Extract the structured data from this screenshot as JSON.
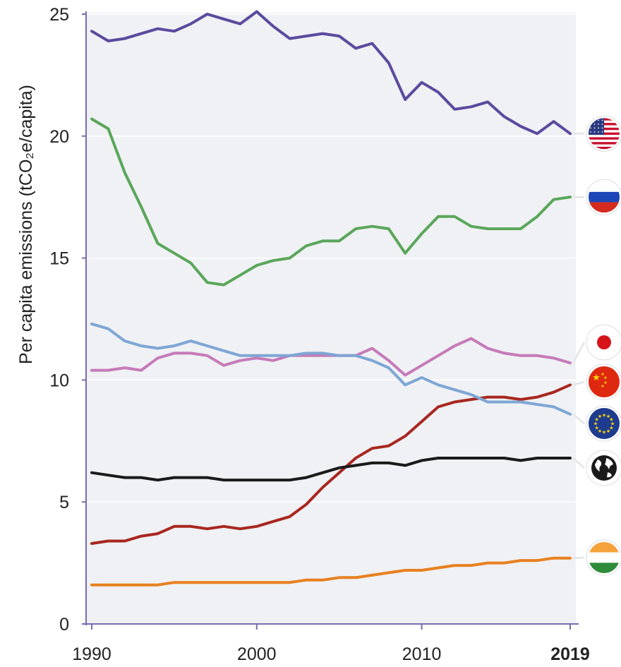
{
  "chart_data": {
    "type": "line",
    "xlabel": "",
    "ylabel": "Per capita emissions (tCO₂e/capita)",
    "xlim": [
      1990,
      2019
    ],
    "ylim": [
      0,
      25
    ],
    "x_ticks": [
      "1990",
      "2000",
      "2010",
      "2019"
    ],
    "x_ticks_bold": [
      false,
      false,
      false,
      true
    ],
    "y_ticks": [
      "0",
      "5",
      "10",
      "15",
      "20",
      "25"
    ],
    "grid": true,
    "legend": "flag icons at right end of each line",
    "x": [
      1990,
      1991,
      1992,
      1993,
      1994,
      1995,
      1996,
      1997,
      1998,
      1999,
      2000,
      2001,
      2002,
      2003,
      2004,
      2005,
      2006,
      2007,
      2008,
      2009,
      2010,
      2011,
      2012,
      2013,
      2014,
      2015,
      2016,
      2017,
      2018,
      2019
    ],
    "series": [
      {
        "flag": "usa-flag-icon",
        "color": "#5b4a9e",
        "values": [
          24.3,
          23.9,
          24.0,
          24.2,
          24.4,
          24.3,
          24.6,
          25.0,
          24.8,
          24.6,
          25.1,
          24.5,
          24.0,
          24.1,
          24.2,
          24.1,
          23.6,
          23.8,
          23.0,
          21.5,
          22.2,
          21.8,
          21.1,
          21.2,
          21.4,
          20.8,
          20.4,
          20.1,
          20.6,
          20.1
        ]
      },
      {
        "flag": "russia-flag-icon",
        "color": "#5aa65a",
        "values": [
          20.7,
          20.3,
          18.5,
          17.1,
          15.6,
          15.2,
          14.8,
          14.0,
          13.9,
          14.3,
          14.7,
          14.9,
          15.0,
          15.5,
          15.7,
          15.7,
          16.2,
          16.3,
          16.2,
          15.2,
          16.0,
          16.7,
          16.7,
          16.3,
          16.2,
          16.2,
          16.2,
          16.7,
          17.4,
          17.5
        ]
      },
      {
        "flag": "japan-flag-icon",
        "color": "#c67ab8",
        "values": [
          10.4,
          10.4,
          10.5,
          10.4,
          10.9,
          11.1,
          11.1,
          11.0,
          10.6,
          10.8,
          10.9,
          10.8,
          11.0,
          11.0,
          11.0,
          11.0,
          11.0,
          11.3,
          10.8,
          10.2,
          10.6,
          11.0,
          11.4,
          11.7,
          11.3,
          11.1,
          11.0,
          11.0,
          10.9,
          10.7
        ]
      },
      {
        "flag": "china-flag-icon",
        "color": "#a8271f",
        "values": [
          3.3,
          3.4,
          3.4,
          3.6,
          3.7,
          4.0,
          4.0,
          3.9,
          4.0,
          3.9,
          4.0,
          4.2,
          4.4,
          4.9,
          5.6,
          6.2,
          6.8,
          7.2,
          7.3,
          7.7,
          8.3,
          8.9,
          9.1,
          9.2,
          9.3,
          9.3,
          9.2,
          9.3,
          9.5,
          9.8
        ]
      },
      {
        "flag": "eu-flag-icon",
        "color": "#7ea6d4",
        "values": [
          12.3,
          12.1,
          11.6,
          11.4,
          11.3,
          11.4,
          11.6,
          11.4,
          11.2,
          11.0,
          11.0,
          11.0,
          11.0,
          11.1,
          11.1,
          11.0,
          11.0,
          10.8,
          10.5,
          9.8,
          10.1,
          9.8,
          9.6,
          9.4,
          9.1,
          9.1,
          9.1,
          9.0,
          8.9,
          8.6
        ]
      },
      {
        "flag": "world-globe-icon",
        "color": "#1a1a1a",
        "values": [
          6.2,
          6.1,
          6.0,
          6.0,
          5.9,
          6.0,
          6.0,
          6.0,
          5.9,
          5.9,
          5.9,
          5.9,
          5.9,
          6.0,
          6.2,
          6.4,
          6.5,
          6.6,
          6.6,
          6.5,
          6.7,
          6.8,
          6.8,
          6.8,
          6.8,
          6.8,
          6.7,
          6.8,
          6.8,
          6.8
        ]
      },
      {
        "flag": "india-flag-icon",
        "color": "#e8801f",
        "values": [
          1.6,
          1.6,
          1.6,
          1.6,
          1.6,
          1.7,
          1.7,
          1.7,
          1.7,
          1.7,
          1.7,
          1.7,
          1.7,
          1.8,
          1.8,
          1.9,
          1.9,
          2.0,
          2.1,
          2.2,
          2.2,
          2.3,
          2.4,
          2.4,
          2.5,
          2.5,
          2.6,
          2.6,
          2.7,
          2.7
        ]
      }
    ],
    "colors": {
      "background": "#eff1f4",
      "axis": "#7a6bb0",
      "gridline": "#ffffff",
      "text": "#222222"
    }
  }
}
